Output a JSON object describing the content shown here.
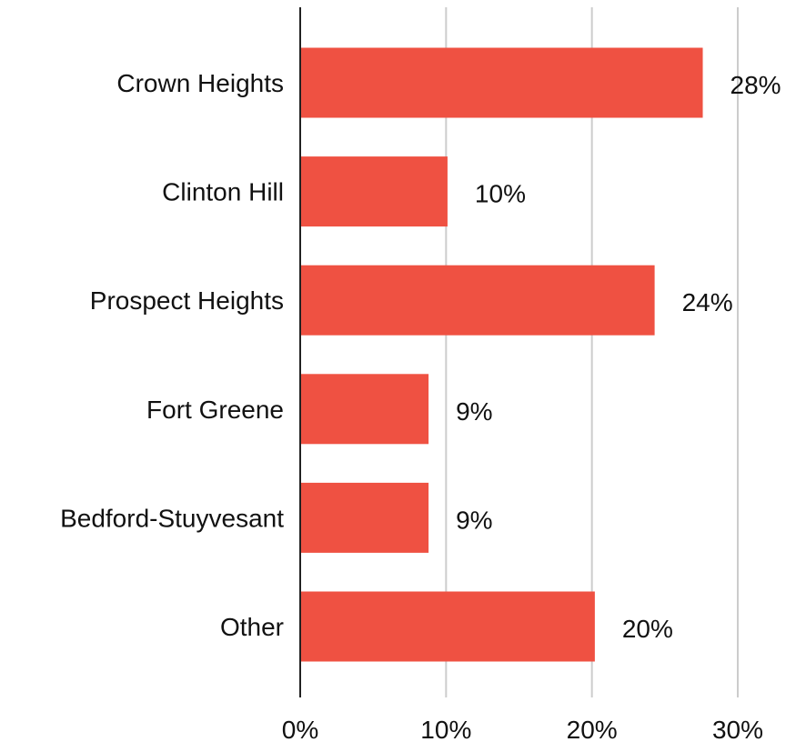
{
  "chart_data": {
    "type": "bar",
    "orientation": "horizontal",
    "categories": [
      "Crown Heights",
      "Clinton Hill",
      "Prospect Heights",
      "Fort Greene",
      "Bedford-Stuyvesant",
      "Other"
    ],
    "values": [
      27.6,
      10.1,
      24.3,
      8.8,
      8.8,
      20.2
    ],
    "value_labels": [
      "28%",
      "10%",
      "24%",
      "9%",
      "9%",
      "20%"
    ],
    "xlim": [
      0,
      30
    ],
    "x_ticks": [
      0,
      10,
      20,
      30
    ],
    "x_tick_labels": [
      "0%",
      "10%",
      "20%",
      "30%"
    ],
    "grid": "vertical",
    "legend": "none",
    "bar_color": "#ef5142"
  }
}
